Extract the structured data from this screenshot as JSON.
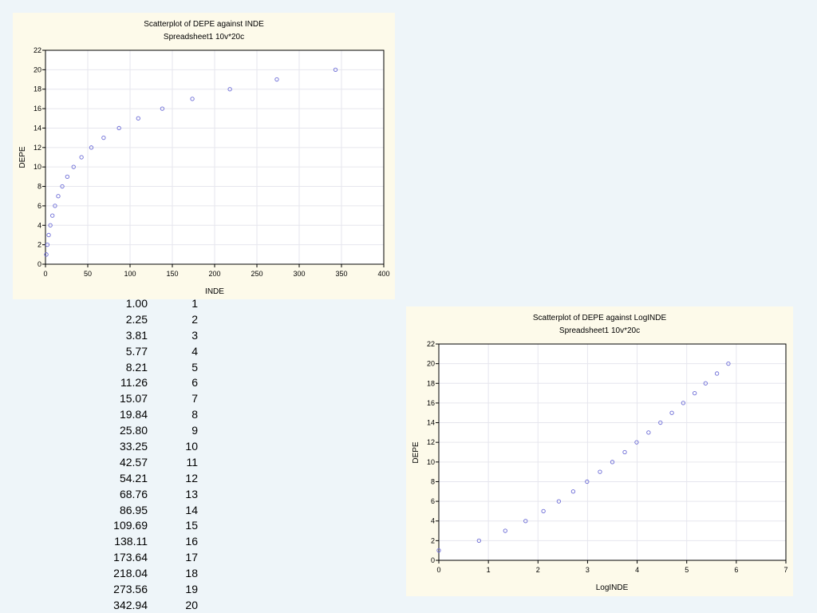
{
  "table": {
    "rows": [
      {
        "inde": "1.00",
        "depe": "1"
      },
      {
        "inde": "2.25",
        "depe": "2"
      },
      {
        "inde": "3.81",
        "depe": "3"
      },
      {
        "inde": "5.77",
        "depe": "4"
      },
      {
        "inde": "8.21",
        "depe": "5"
      },
      {
        "inde": "11.26",
        "depe": "6"
      },
      {
        "inde": "15.07",
        "depe": "7"
      },
      {
        "inde": "19.84",
        "depe": "8"
      },
      {
        "inde": "25.80",
        "depe": "9"
      },
      {
        "inde": "33.25",
        "depe": "10"
      },
      {
        "inde": "42.57",
        "depe": "11"
      },
      {
        "inde": "54.21",
        "depe": "12"
      },
      {
        "inde": "68.76",
        "depe": "13"
      },
      {
        "inde": "86.95",
        "depe": "14"
      },
      {
        "inde": "109.69",
        "depe": "15"
      },
      {
        "inde": "138.11",
        "depe": "16"
      },
      {
        "inde": "173.64",
        "depe": "17"
      },
      {
        "inde": "218.04",
        "depe": "18"
      },
      {
        "inde": "273.56",
        "depe": "19"
      },
      {
        "inde": "342.94",
        "depe": "20"
      }
    ]
  },
  "colors": {
    "background": "#eef5f9",
    "panel": "#fdfaea",
    "plot_area": "#ffffff",
    "marker": "#6b6bd6",
    "grid": "#e6e6ee"
  },
  "chart_data": [
    {
      "type": "scatter",
      "title": "Scatterplot of DEPE against INDE",
      "subtitle": "Spreadsheet1 10v*20c",
      "xlabel": "INDE",
      "ylabel": "DEPE",
      "xlim": [
        0,
        400
      ],
      "ylim": [
        0,
        22
      ],
      "xticks": [
        0,
        50,
        100,
        150,
        200,
        250,
        300,
        350,
        400
      ],
      "yticks": [
        0,
        2,
        4,
        6,
        8,
        10,
        12,
        14,
        16,
        18,
        20,
        22
      ],
      "grid": true,
      "x": [
        1.0,
        2.25,
        3.81,
        5.77,
        8.21,
        11.26,
        15.07,
        19.84,
        25.8,
        33.25,
        42.57,
        54.21,
        68.76,
        86.95,
        109.69,
        138.11,
        173.64,
        218.04,
        273.56,
        342.94
      ],
      "y": [
        1,
        2,
        3,
        4,
        5,
        6,
        7,
        8,
        9,
        10,
        11,
        12,
        13,
        14,
        15,
        16,
        17,
        18,
        19,
        20
      ]
    },
    {
      "type": "scatter",
      "title": "Scatterplot of DEPE against LogINDE",
      "subtitle": "Spreadsheet1 10v*20c",
      "xlabel": "LogINDE",
      "ylabel": "DEPE",
      "xlim": [
        0,
        7
      ],
      "ylim": [
        0,
        22
      ],
      "xticks": [
        0,
        1,
        2,
        3,
        4,
        5,
        6,
        7
      ],
      "yticks": [
        0,
        2,
        4,
        6,
        8,
        10,
        12,
        14,
        16,
        18,
        20,
        22
      ],
      "grid": true,
      "x": [
        0.0,
        0.81,
        1.34,
        1.75,
        2.11,
        2.42,
        2.71,
        2.99,
        3.25,
        3.5,
        3.75,
        3.99,
        4.23,
        4.47,
        4.7,
        4.93,
        5.16,
        5.38,
        5.61,
        5.84
      ],
      "y": [
        1,
        2,
        3,
        4,
        5,
        6,
        7,
        8,
        9,
        10,
        11,
        12,
        13,
        14,
        15,
        16,
        17,
        18,
        19,
        20
      ]
    }
  ]
}
